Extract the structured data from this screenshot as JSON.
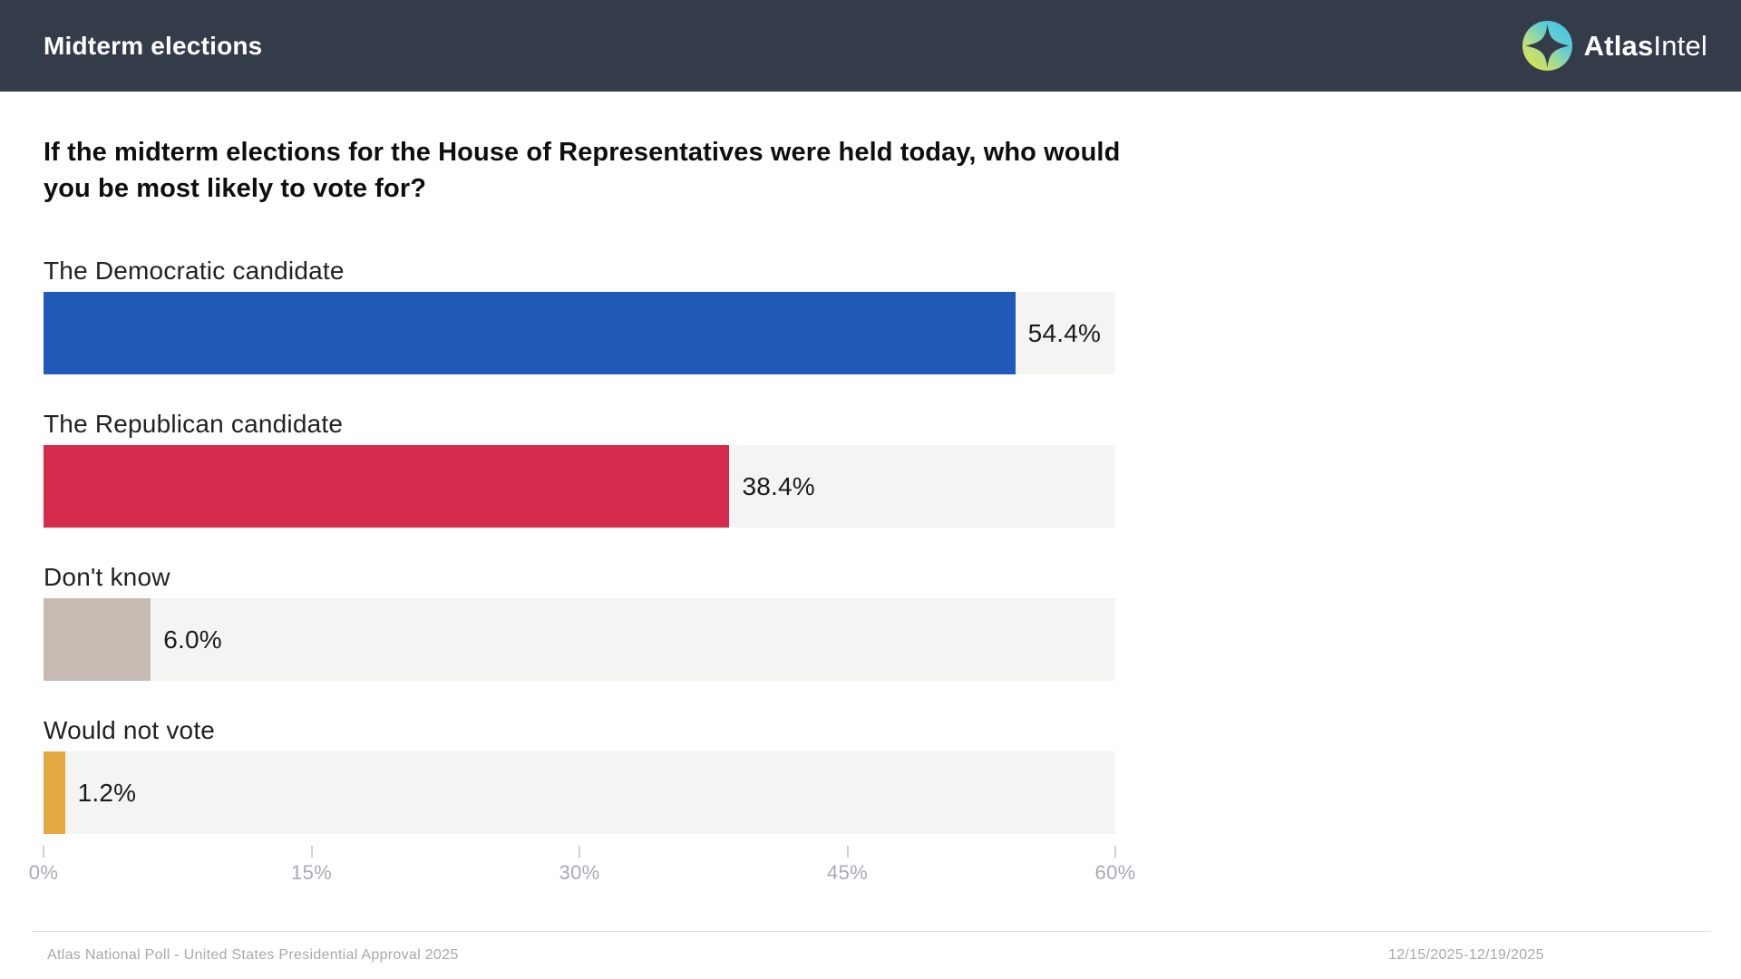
{
  "header": {
    "title": "Midterm elections",
    "brand_bold": "Atlas",
    "brand_light": "Intel",
    "background": "#343c4a"
  },
  "question": {
    "line1": "If the midterm elections for the House of Representatives were held today, who would",
    "line2": "you be most likely to vote for?"
  },
  "chart_data": {
    "type": "bar",
    "orientation": "horizontal",
    "title": "If the midterm elections for the House of Representatives were held today, who would you be most likely to vote for?",
    "categories": [
      "The Democratic candidate",
      "The Republican candidate",
      "Don't know",
      "Would not vote"
    ],
    "values": [
      54.4,
      38.4,
      6.0,
      1.2
    ],
    "value_labels": [
      "54.4%",
      "38.4%",
      "6.0%",
      "1.2%"
    ],
    "bar_colors": [
      "#2059b8",
      "#d62b4d",
      "#c7bab2",
      "#e6a840"
    ],
    "track_color": "#f4f4f2",
    "xlim": [
      0,
      60
    ],
    "x_tick_values": [
      0,
      15,
      30,
      45,
      60
    ],
    "x_ticks": [
      "0%",
      "15%",
      "30%",
      "45%",
      "60%"
    ],
    "grid": false,
    "legend": false
  },
  "footer": {
    "source": "Atlas National Poll - United States Presidential Approval 2025",
    "dates": "12/15/2025-12/19/2025"
  },
  "icons": {
    "logo": "compass-star-icon"
  }
}
